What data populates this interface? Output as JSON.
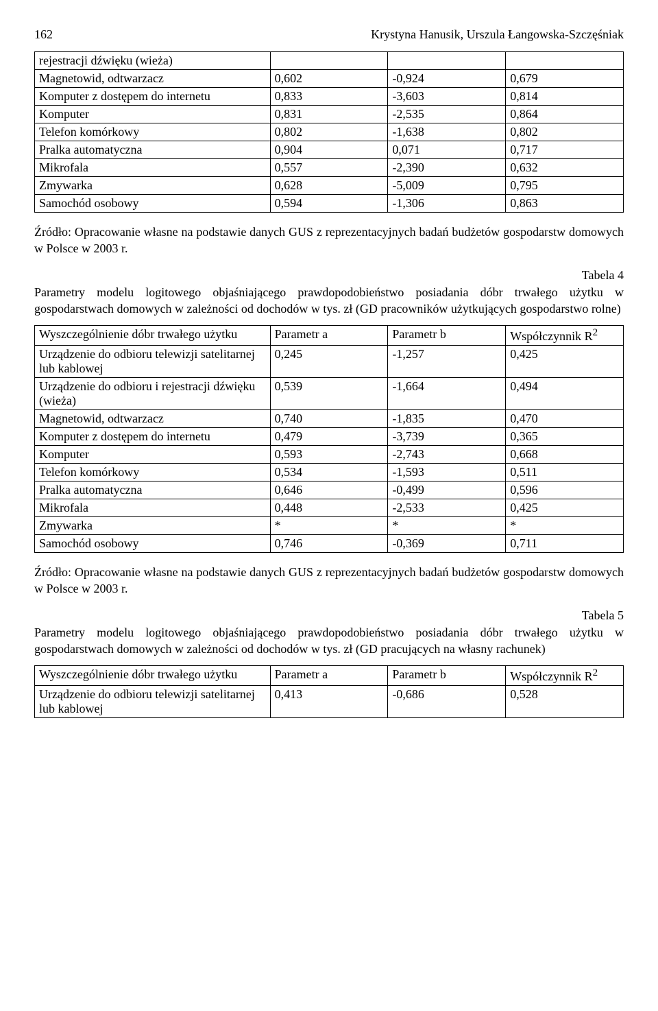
{
  "header": {
    "page_num": "162",
    "authors": "Krystyna Hanusik, Urszula Łangowska-Szczęśniak"
  },
  "table1": {
    "rows": [
      [
        "rejestracji dźwięku (wieża)",
        "",
        "",
        ""
      ],
      [
        "Magnetowid, odtwarzacz",
        "0,602",
        "-0,924",
        "0,679"
      ],
      [
        "Komputer z dostępem do internetu",
        "0,833",
        "-3,603",
        "0,814"
      ],
      [
        "Komputer",
        "0,831",
        "-2,535",
        "0,864"
      ],
      [
        "Telefon komórkowy",
        "0,802",
        "-1,638",
        "0,802"
      ],
      [
        "Pralka automatyczna",
        "0,904",
        "0,071",
        "0,717"
      ],
      [
        "Mikrofala",
        "0,557",
        "-2,390",
        "0,632"
      ],
      [
        "Zmywarka",
        "0,628",
        "-5,009",
        "0,795"
      ],
      [
        "Samochód osobowy",
        "0,594",
        "-1,306",
        "0,863"
      ]
    ]
  },
  "source_text": "Źródło: Opracowanie własne na podstawie danych GUS z reprezentacyjnych badań budżetów gospodarstw domowych w Polsce w 2003 r.",
  "table4": {
    "label": "Tabela 4",
    "caption": "Parametry modelu logitowego objaśniającego prawdopodobieństwo posiadania dóbr trwałego użytku w gospodarstwach domowych w zależności od dochodów w tys. zł (GD pracowników użytkujących gospodarstwo rolne)",
    "header": [
      "Wyszczególnienie dóbr trwałego użytku",
      "Parametr a",
      "Parametr b",
      "Współczynnik R²"
    ],
    "rows": [
      [
        "Urządzenie do odbioru telewizji satelitarnej lub kablowej",
        "0,245",
        "-1,257",
        "0,425"
      ],
      [
        "Urządzenie do odbioru i rejestracji dźwięku (wieża)",
        "0,539",
        "-1,664",
        "0,494"
      ],
      [
        "Magnetowid, odtwarzacz",
        "0,740",
        "-1,835",
        "0,470"
      ],
      [
        "Komputer z dostępem do internetu",
        "0,479",
        "-3,739",
        "0,365"
      ],
      [
        "Komputer",
        "0,593",
        "-2,743",
        "0,668"
      ],
      [
        "Telefon komórkowy",
        "0,534",
        "-1,593",
        "0,511"
      ],
      [
        "Pralka automatyczna",
        "0,646",
        "-0,499",
        "0,596"
      ],
      [
        "Mikrofala",
        "0,448",
        "-2,533",
        "0,425"
      ],
      [
        "Zmywarka",
        "*",
        "*",
        "*"
      ],
      [
        "Samochód osobowy",
        "0,746",
        "-0,369",
        "0,711"
      ]
    ]
  },
  "table5": {
    "label": "Tabela 5",
    "caption": "Parametry modelu logitowego objaśniającego prawdopodobieństwo posiadania dóbr trwałego użytku w gospodarstwach domowych w zależności od dochodów w tys. zł (GD pracujących na własny rachunek)",
    "header": [
      "Wyszczególnienie dóbr trwałego użytku",
      "Parametr a",
      "Parametr b",
      "Współczynnik R²"
    ],
    "rows": [
      [
        "Urządzenie do odbioru telewizji satelitarnej lub kablowej",
        "0,413",
        "-0,686",
        "0,528"
      ]
    ]
  },
  "table_header_r2_html": "Współczynnik R<sup>2</sup>"
}
